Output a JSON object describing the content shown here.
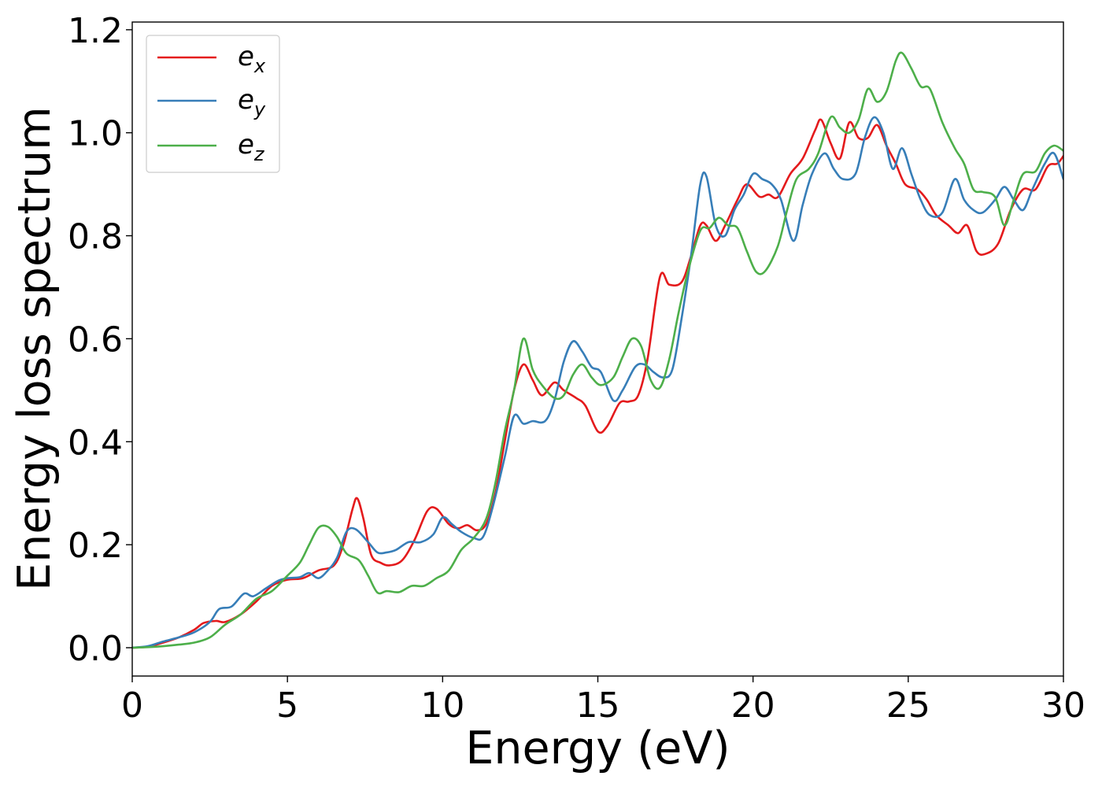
{
  "chart_data": {
    "type": "line",
    "title": "",
    "xlabel": "Energy (eV)",
    "ylabel": "Energy loss spectrum",
    "xlim": [
      0,
      30
    ],
    "ylim": [
      -0.055,
      1.215
    ],
    "xticks": [
      0,
      5,
      10,
      15,
      20,
      25,
      30
    ],
    "xtick_labels": [
      "0",
      "5",
      "10",
      "15",
      "20",
      "25",
      "30"
    ],
    "yticks": [
      0.0,
      0.2,
      0.4,
      0.6,
      0.8,
      1.0,
      1.2
    ],
    "ytick_labels": [
      "0.0",
      "0.2",
      "0.4",
      "0.6",
      "0.8",
      "1.0",
      "1.2"
    ],
    "grid": false,
    "legend_position": "top-left",
    "series": [
      {
        "name": "e_x",
        "label_main": "e",
        "label_sub": "x",
        "color": "#e41a1c",
        "points": [
          [
            0,
            0
          ],
          [
            0.5,
            0.002
          ],
          [
            1,
            0.01
          ],
          [
            1.5,
            0.02
          ],
          [
            2,
            0.035
          ],
          [
            2.3,
            0.048
          ],
          [
            2.7,
            0.052
          ],
          [
            3,
            0.05
          ],
          [
            3.5,
            0.065
          ],
          [
            4,
            0.09
          ],
          [
            4.5,
            0.12
          ],
          [
            5,
            0.132
          ],
          [
            5.5,
            0.135
          ],
          [
            6,
            0.15
          ],
          [
            6.5,
            0.16
          ],
          [
            6.8,
            0.2
          ],
          [
            7.1,
            0.27
          ],
          [
            7.25,
            0.29
          ],
          [
            7.45,
            0.25
          ],
          [
            7.7,
            0.18
          ],
          [
            8,
            0.165
          ],
          [
            8.3,
            0.16
          ],
          [
            8.7,
            0.17
          ],
          [
            9.1,
            0.21
          ],
          [
            9.5,
            0.265
          ],
          [
            9.8,
            0.27
          ],
          [
            10.2,
            0.24
          ],
          [
            10.5,
            0.232
          ],
          [
            10.8,
            0.238
          ],
          [
            11.1,
            0.228
          ],
          [
            11.4,
            0.24
          ],
          [
            11.7,
            0.3
          ],
          [
            12,
            0.4
          ],
          [
            12.3,
            0.5
          ],
          [
            12.6,
            0.55
          ],
          [
            12.9,
            0.52
          ],
          [
            13.2,
            0.49
          ],
          [
            13.6,
            0.515
          ],
          [
            13.9,
            0.5
          ],
          [
            14.3,
            0.485
          ],
          [
            14.6,
            0.47
          ],
          [
            15,
            0.42
          ],
          [
            15.3,
            0.43
          ],
          [
            15.7,
            0.475
          ],
          [
            16,
            0.478
          ],
          [
            16.3,
            0.49
          ],
          [
            16.6,
            0.56
          ],
          [
            17,
            0.72
          ],
          [
            17.3,
            0.705
          ],
          [
            17.7,
            0.71
          ],
          [
            18,
            0.76
          ],
          [
            18.3,
            0.82
          ],
          [
            18.5,
            0.82
          ],
          [
            18.8,
            0.79
          ],
          [
            19.1,
            0.82
          ],
          [
            19.5,
            0.87
          ],
          [
            19.8,
            0.9
          ],
          [
            20.2,
            0.876
          ],
          [
            20.5,
            0.88
          ],
          [
            20.8,
            0.875
          ],
          [
            21.2,
            0.92
          ],
          [
            21.6,
            0.95
          ],
          [
            22,
            1.005
          ],
          [
            22.2,
            1.025
          ],
          [
            22.5,
            0.98
          ],
          [
            22.8,
            0.95
          ],
          [
            23.1,
            1.02
          ],
          [
            23.4,
            0.99
          ],
          [
            23.7,
            0.99
          ],
          [
            24,
            1.015
          ],
          [
            24.3,
            0.975
          ],
          [
            24.6,
            0.94
          ],
          [
            24.9,
            0.9
          ],
          [
            25.3,
            0.89
          ],
          [
            25.6,
            0.87
          ],
          [
            25.9,
            0.84
          ],
          [
            26.3,
            0.82
          ],
          [
            26.6,
            0.805
          ],
          [
            26.9,
            0.82
          ],
          [
            27.2,
            0.77
          ],
          [
            27.5,
            0.765
          ],
          [
            27.9,
            0.785
          ],
          [
            28.3,
            0.85
          ],
          [
            28.7,
            0.89
          ],
          [
            29.1,
            0.89
          ],
          [
            29.5,
            0.935
          ],
          [
            29.8,
            0.94
          ],
          [
            30,
            0.955
          ]
        ]
      },
      {
        "name": "e_y",
        "label_main": "e",
        "label_sub": "y",
        "color": "#377eb8",
        "points": [
          [
            0,
            0
          ],
          [
            0.5,
            0.003
          ],
          [
            1,
            0.012
          ],
          [
            1.5,
            0.02
          ],
          [
            2,
            0.03
          ],
          [
            2.5,
            0.05
          ],
          [
            2.8,
            0.075
          ],
          [
            3.2,
            0.08
          ],
          [
            3.6,
            0.105
          ],
          [
            3.9,
            0.1
          ],
          [
            4.3,
            0.115
          ],
          [
            4.7,
            0.13
          ],
          [
            5,
            0.135
          ],
          [
            5.4,
            0.137
          ],
          [
            5.7,
            0.145
          ],
          [
            6,
            0.135
          ],
          [
            6.3,
            0.15
          ],
          [
            6.6,
            0.175
          ],
          [
            6.9,
            0.225
          ],
          [
            7.2,
            0.23
          ],
          [
            7.6,
            0.205
          ],
          [
            7.9,
            0.185
          ],
          [
            8.2,
            0.185
          ],
          [
            8.5,
            0.19
          ],
          [
            8.9,
            0.205
          ],
          [
            9.3,
            0.205
          ],
          [
            9.7,
            0.22
          ],
          [
            10,
            0.253
          ],
          [
            10.3,
            0.24
          ],
          [
            10.6,
            0.225
          ],
          [
            11,
            0.213
          ],
          [
            11.3,
            0.215
          ],
          [
            11.6,
            0.27
          ],
          [
            12,
            0.37
          ],
          [
            12.3,
            0.45
          ],
          [
            12.6,
            0.435
          ],
          [
            12.9,
            0.44
          ],
          [
            13.3,
            0.44
          ],
          [
            13.6,
            0.48
          ],
          [
            13.9,
            0.555
          ],
          [
            14.2,
            0.595
          ],
          [
            14.5,
            0.575
          ],
          [
            14.8,
            0.545
          ],
          [
            15.1,
            0.535
          ],
          [
            15.5,
            0.48
          ],
          [
            15.8,
            0.5
          ],
          [
            16.2,
            0.545
          ],
          [
            16.5,
            0.55
          ],
          [
            16.8,
            0.535
          ],
          [
            17.1,
            0.525
          ],
          [
            17.4,
            0.54
          ],
          [
            17.7,
            0.64
          ],
          [
            18,
            0.76
          ],
          [
            18.3,
            0.9
          ],
          [
            18.5,
            0.915
          ],
          [
            18.8,
            0.82
          ],
          [
            19.1,
            0.8
          ],
          [
            19.4,
            0.85
          ],
          [
            19.7,
            0.88
          ],
          [
            20,
            0.92
          ],
          [
            20.3,
            0.91
          ],
          [
            20.6,
            0.9
          ],
          [
            20.9,
            0.87
          ],
          [
            21.3,
            0.79
          ],
          [
            21.6,
            0.86
          ],
          [
            21.9,
            0.92
          ],
          [
            22.3,
            0.96
          ],
          [
            22.6,
            0.93
          ],
          [
            22.9,
            0.91
          ],
          [
            23.3,
            0.92
          ],
          [
            23.6,
            0.99
          ],
          [
            23.9,
            1.03
          ],
          [
            24.2,
            1.0
          ],
          [
            24.5,
            0.93
          ],
          [
            24.8,
            0.97
          ],
          [
            25.1,
            0.92
          ],
          [
            25.4,
            0.87
          ],
          [
            25.7,
            0.84
          ],
          [
            26.1,
            0.845
          ],
          [
            26.5,
            0.91
          ],
          [
            26.8,
            0.87
          ],
          [
            27.1,
            0.85
          ],
          [
            27.4,
            0.845
          ],
          [
            27.8,
            0.87
          ],
          [
            28.1,
            0.895
          ],
          [
            28.4,
            0.87
          ],
          [
            28.7,
            0.85
          ],
          [
            29,
            0.89
          ],
          [
            29.4,
            0.94
          ],
          [
            29.7,
            0.96
          ],
          [
            30,
            0.91
          ]
        ]
      },
      {
        "name": "e_z",
        "label_main": "e",
        "label_sub": "z",
        "color": "#4daf4a",
        "points": [
          [
            0,
            0
          ],
          [
            0.5,
            0.001
          ],
          [
            1,
            0.003
          ],
          [
            1.5,
            0.006
          ],
          [
            2,
            0.01
          ],
          [
            2.5,
            0.02
          ],
          [
            3,
            0.045
          ],
          [
            3.5,
            0.065
          ],
          [
            4,
            0.095
          ],
          [
            4.5,
            0.11
          ],
          [
            5,
            0.14
          ],
          [
            5.4,
            0.165
          ],
          [
            5.7,
            0.2
          ],
          [
            6,
            0.233
          ],
          [
            6.3,
            0.235
          ],
          [
            6.6,
            0.215
          ],
          [
            6.9,
            0.183
          ],
          [
            7.3,
            0.17
          ],
          [
            7.6,
            0.14
          ],
          [
            7.9,
            0.107
          ],
          [
            8.2,
            0.11
          ],
          [
            8.6,
            0.108
          ],
          [
            9,
            0.12
          ],
          [
            9.4,
            0.12
          ],
          [
            9.8,
            0.135
          ],
          [
            10.2,
            0.15
          ],
          [
            10.6,
            0.19
          ],
          [
            11,
            0.213
          ],
          [
            11.4,
            0.25
          ],
          [
            11.7,
            0.32
          ],
          [
            12,
            0.42
          ],
          [
            12.3,
            0.5
          ],
          [
            12.6,
            0.6
          ],
          [
            12.9,
            0.54
          ],
          [
            13.2,
            0.51
          ],
          [
            13.6,
            0.485
          ],
          [
            13.9,
            0.49
          ],
          [
            14.2,
            0.53
          ],
          [
            14.5,
            0.55
          ],
          [
            14.8,
            0.525
          ],
          [
            15.1,
            0.51
          ],
          [
            15.5,
            0.525
          ],
          [
            15.8,
            0.565
          ],
          [
            16.1,
            0.6
          ],
          [
            16.4,
            0.585
          ],
          [
            16.7,
            0.52
          ],
          [
            17,
            0.505
          ],
          [
            17.3,
            0.56
          ],
          [
            17.6,
            0.65
          ],
          [
            17.9,
            0.73
          ],
          [
            18.3,
            0.81
          ],
          [
            18.6,
            0.815
          ],
          [
            18.9,
            0.835
          ],
          [
            19.2,
            0.82
          ],
          [
            19.5,
            0.815
          ],
          [
            19.8,
            0.77
          ],
          [
            20.1,
            0.73
          ],
          [
            20.4,
            0.732
          ],
          [
            20.8,
            0.78
          ],
          [
            21.1,
            0.85
          ],
          [
            21.4,
            0.91
          ],
          [
            21.8,
            0.93
          ],
          [
            22.1,
            0.96
          ],
          [
            22.5,
            1.03
          ],
          [
            22.8,
            1.01
          ],
          [
            23.1,
            1.0
          ],
          [
            23.4,
            1.025
          ],
          [
            23.7,
            1.085
          ],
          [
            24,
            1.06
          ],
          [
            24.3,
            1.08
          ],
          [
            24.6,
            1.14
          ],
          [
            24.8,
            1.155
          ],
          [
            25.1,
            1.125
          ],
          [
            25.4,
            1.09
          ],
          [
            25.7,
            1.085
          ],
          [
            26.1,
            1.02
          ],
          [
            26.5,
            0.97
          ],
          [
            26.8,
            0.94
          ],
          [
            27.1,
            0.89
          ],
          [
            27.4,
            0.885
          ],
          [
            27.8,
            0.875
          ],
          [
            28.1,
            0.82
          ],
          [
            28.4,
            0.87
          ],
          [
            28.7,
            0.92
          ],
          [
            29.1,
            0.925
          ],
          [
            29.4,
            0.96
          ],
          [
            29.7,
            0.975
          ],
          [
            30,
            0.965
          ]
        ]
      }
    ]
  }
}
